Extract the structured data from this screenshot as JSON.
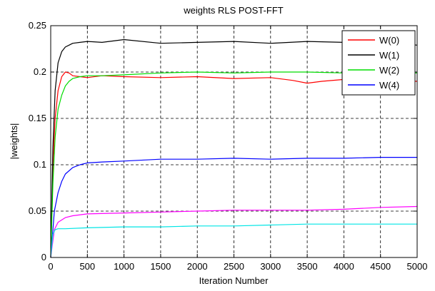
{
  "chart_data": {
    "type": "line",
    "title": "weights RLS POST-FFT",
    "xlabel": "Iteration Number",
    "ylabel": "|weights|",
    "xlim": [
      0,
      5000
    ],
    "ylim": [
      0,
      0.25
    ],
    "xticks": [
      0,
      500,
      1000,
      1500,
      2000,
      2500,
      3000,
      3500,
      4000,
      4500,
      5000
    ],
    "xtick_labels": [
      "0",
      "500",
      "1000",
      "1500",
      "2000",
      "2500",
      "3000",
      "3500",
      "4000",
      "4500",
      "5000"
    ],
    "yticks": [
      0,
      0.05,
      0.1,
      0.15,
      0.2,
      0.25
    ],
    "ytick_labels": [
      "0",
      "0.05",
      "0.1",
      "0.15",
      "0.2",
      "0.25"
    ],
    "grid": true,
    "legend_position": "top-right",
    "series": [
      {
        "name": "W(0)",
        "color": "#ff0000",
        "legend": true,
        "x": [
          0,
          30,
          60,
          100,
          150,
          200,
          250,
          300,
          400,
          500,
          700,
          1000,
          1500,
          2000,
          2500,
          3000,
          3300,
          3500,
          3700,
          4000,
          4500,
          5000
        ],
        "y": [
          0,
          0.1,
          0.15,
          0.18,
          0.195,
          0.2,
          0.199,
          0.196,
          0.195,
          0.194,
          0.196,
          0.195,
          0.194,
          0.195,
          0.193,
          0.194,
          0.191,
          0.188,
          0.19,
          0.192,
          0.191,
          0.19
        ]
      },
      {
        "name": "W(1)",
        "color": "#000000",
        "legend": true,
        "x": [
          0,
          30,
          60,
          100,
          150,
          200,
          250,
          300,
          400,
          500,
          700,
          1000,
          1500,
          2000,
          2500,
          3000,
          3500,
          4000,
          4500,
          5000
        ],
        "y": [
          0,
          0.12,
          0.18,
          0.21,
          0.222,
          0.227,
          0.229,
          0.231,
          0.232,
          0.233,
          0.232,
          0.235,
          0.231,
          0.232,
          0.233,
          0.231,
          0.233,
          0.232,
          0.233,
          0.229
        ]
      },
      {
        "name": "W(2)",
        "color": "#00dd00",
        "legend": true,
        "x": [
          0,
          30,
          60,
          100,
          150,
          200,
          250,
          300,
          400,
          500,
          700,
          1000,
          1500,
          2000,
          2500,
          3000,
          3500,
          4000,
          4500,
          5000
        ],
        "y": [
          0,
          0.08,
          0.13,
          0.16,
          0.175,
          0.185,
          0.19,
          0.193,
          0.195,
          0.196,
          0.196,
          0.197,
          0.199,
          0.2,
          0.199,
          0.2,
          0.2,
          0.199,
          0.199,
          0.199
        ]
      },
      {
        "name": "W(4)",
        "color": "#0000ff",
        "legend": true,
        "x": [
          0,
          50,
          100,
          150,
          200,
          300,
          400,
          500,
          700,
          1000,
          1500,
          2000,
          2500,
          3000,
          3500,
          4000,
          4500,
          5000
        ],
        "y": [
          0,
          0.05,
          0.07,
          0.082,
          0.09,
          0.097,
          0.1,
          0.102,
          0.103,
          0.104,
          0.106,
          0.106,
          0.107,
          0.106,
          0.107,
          0.107,
          0.108,
          0.108
        ]
      },
      {
        "name": "",
        "color": "#ff00ff",
        "legend": false,
        "x": [
          0,
          50,
          100,
          200,
          300,
          500,
          1000,
          1500,
          2000,
          2500,
          3000,
          3500,
          4000,
          4500,
          5000
        ],
        "y": [
          0,
          0.03,
          0.038,
          0.043,
          0.045,
          0.047,
          0.048,
          0.049,
          0.05,
          0.051,
          0.051,
          0.051,
          0.052,
          0.054,
          0.055
        ]
      },
      {
        "name": "",
        "color": "#00e5e5",
        "legend": false,
        "x": [
          0,
          30,
          60,
          100,
          200,
          500,
          1000,
          1500,
          2000,
          2500,
          3000,
          3500,
          4000,
          4500,
          5000
        ],
        "y": [
          0,
          0.025,
          0.03,
          0.031,
          0.031,
          0.032,
          0.033,
          0.033,
          0.034,
          0.034,
          0.035,
          0.036,
          0.036,
          0.036,
          0.036
        ]
      }
    ]
  }
}
